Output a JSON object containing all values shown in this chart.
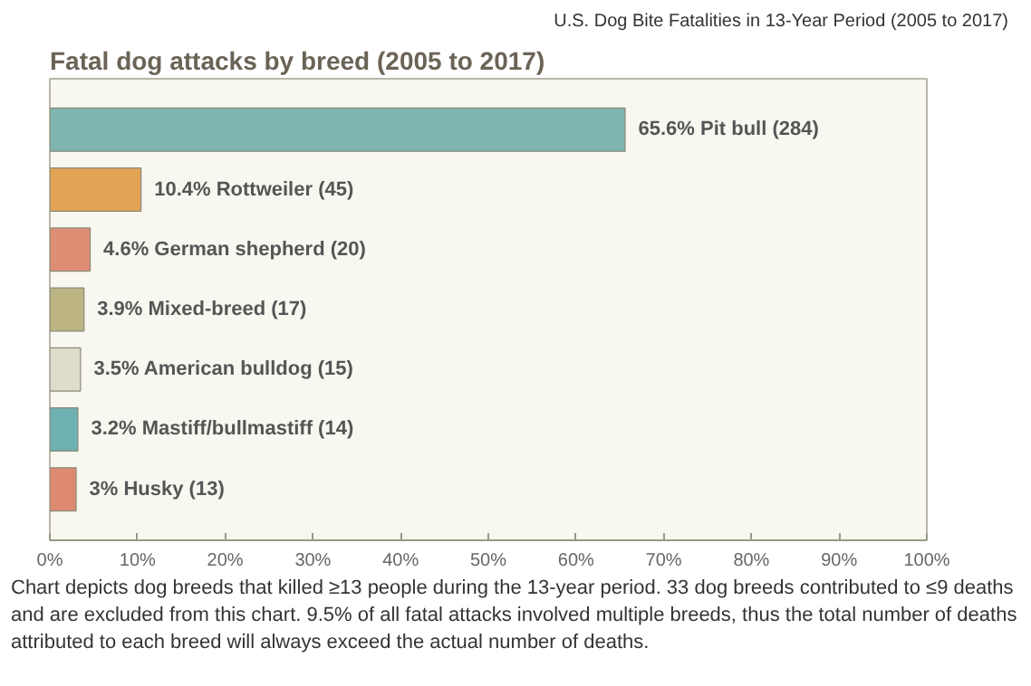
{
  "chart_data": {
    "type": "bar",
    "orientation": "horizontal",
    "title": "U.S. Dog Bite Fatalities in 13-Year Period (2005 to 2017)",
    "subtitle": "Fatal dog attacks by breed (2005 to 2017)",
    "categories": [
      null,
      null,
      null,
      null,
      null,
      null,
      null
    ],
    "values": [
      65.6,
      10.4,
      4.6,
      3.9,
      3.5,
      3.2,
      3
    ],
    "colors": [
      "#7fb5ae",
      "#e3a354",
      "#dd8e74",
      "#bcb482",
      "#dedccb",
      "#6fb0b2",
      "#dd8a70"
    ],
    "value_labels": [
      "65.6% Pit bull (284)",
      "10.4% Rottweiler (45)",
      "4.6% German shepherd (20)",
      "3.9% Mixed-breed (17)",
      "3.5% American bulldog (15)",
      "3.2% Mastiff/bullmastiff (14)",
      "3% Husky (13)"
    ],
    "xlim": [
      0,
      100
    ],
    "xticks": [
      {
        "value": 0,
        "label": "0%"
      },
      {
        "value": 10,
        "label": "10%"
      },
      {
        "value": 20,
        "label": "20%"
      },
      {
        "value": 30,
        "label": "30%"
      },
      {
        "value": 40,
        "label": "40%"
      },
      {
        "value": 50,
        "label": "50%"
      },
      {
        "value": 60,
        "label": "60%"
      },
      {
        "value": 70,
        "label": "70%"
      },
      {
        "value": 80,
        "label": "80%"
      },
      {
        "value": 90,
        "label": "90%"
      },
      {
        "value": 100,
        "label": "100%"
      }
    ],
    "annotations": [
      "Chart depicts dog breeds that killed ≥13 people during the 13-year period. 33 dog breeds contributed to ≤9 deaths and are excluded from this chart. 9.5% of all fatal attacks involved multiple breeds, thus the total number of deaths attributed to each breed will always exceed the actual number of deaths."
    ]
  }
}
